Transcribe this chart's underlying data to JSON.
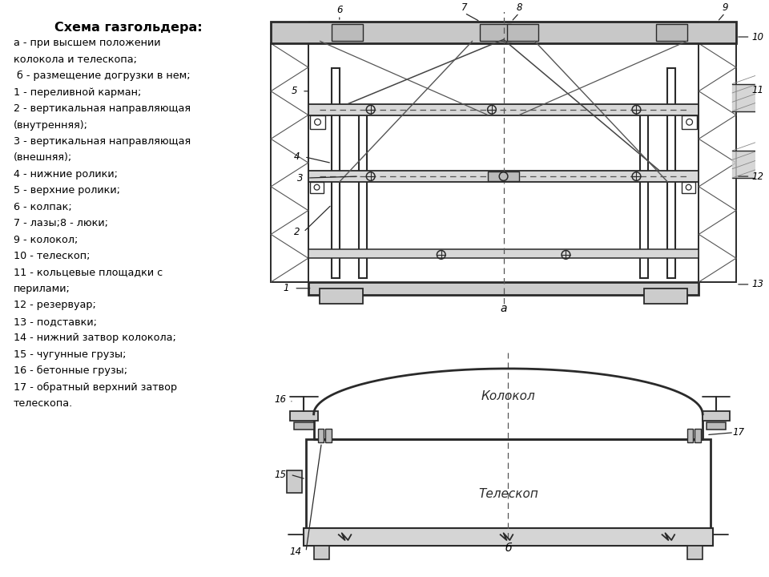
{
  "title": "Схема газгольдера:",
  "legend_lines": [
    "а - при высшем положении",
    "колокола и телескопа;",
    " б - размещение догрузки в нем;",
    "1 - переливной карман;",
    "2 - вертикальная направляющая",
    "(внутренняя);",
    "3 - вертикальная направляющая",
    "(внешняя);",
    "4 - нижние ролики;",
    "5 - верхние ролики;",
    "6 - колпак;",
    "7 - лазы;8 - люки;",
    "9 - колокол;",
    "10 - телескоп;",
    "11 - кольцевые площадки с",
    "перилами;",
    "12 - резервуар;",
    "13 - подставки;",
    "14 - нижний затвор колокола;",
    "15 - чугунные грузы;",
    "16 - бетонные грузы;",
    "17 - обратный верхний затвор",
    "телескопа."
  ],
  "bg_color": "#ffffff",
  "text_color": "#000000"
}
